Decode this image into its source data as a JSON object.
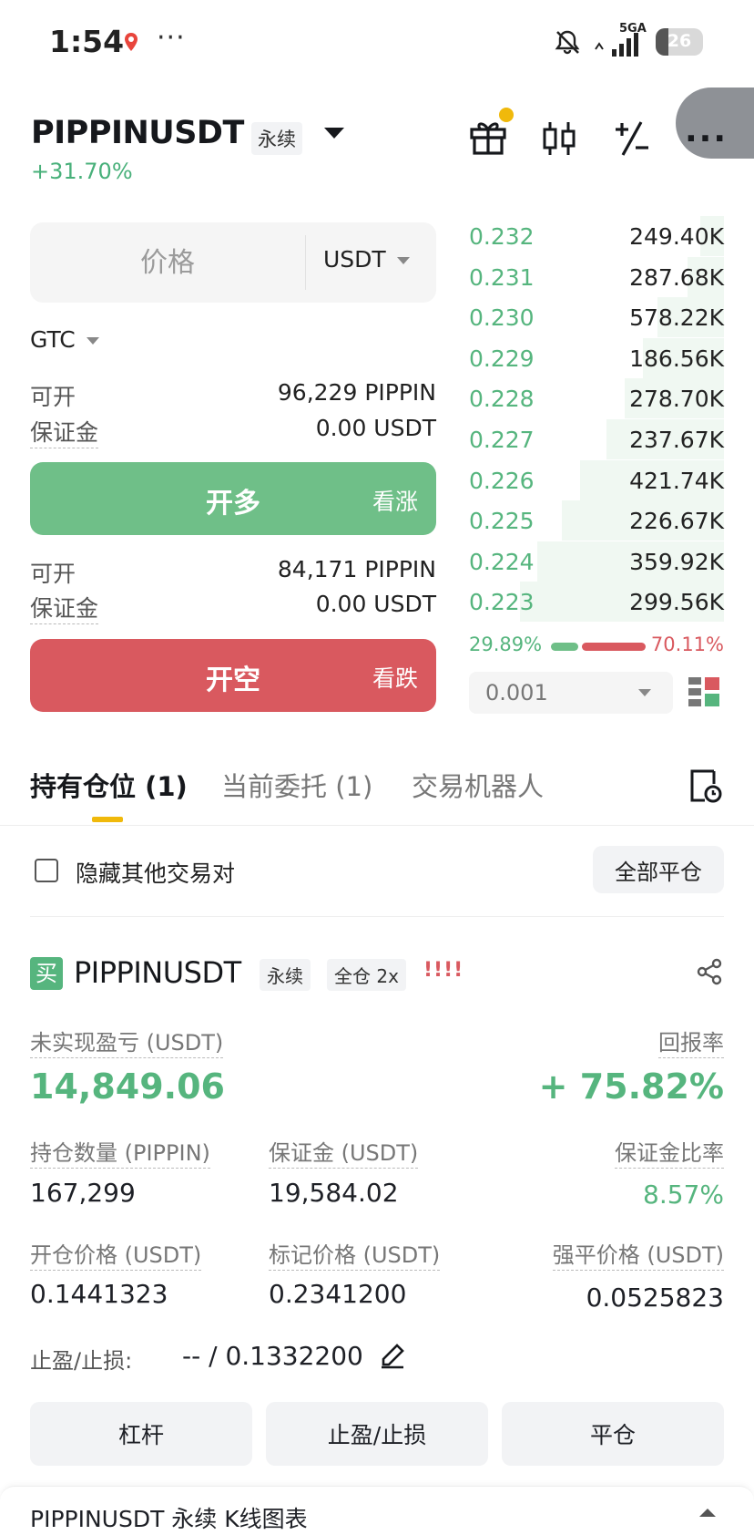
{
  "status_bar": {
    "time": "1:54",
    "network": "5GA",
    "battery": "26"
  },
  "header": {
    "symbol": "PIPPINUSDT",
    "contract_type": "永续",
    "change_pct": "+31.70%",
    "icons": [
      "gift-icon",
      "candlestick-icon",
      "plus-minus-icon",
      "more-icon"
    ]
  },
  "order_form": {
    "price_placeholder": "价格",
    "price_unit": "USDT",
    "time_in_force": "GTC",
    "long": {
      "available_label": "可开",
      "available_value": "96,229 PIPPIN",
      "margin_label": "保证金",
      "margin_value": "0.00 USDT",
      "button_label": "开多",
      "button_sub": "看涨"
    },
    "short": {
      "available_label": "可开",
      "available_value": "84,171 PIPPIN",
      "margin_label": "保证金",
      "margin_value": "0.00 USDT",
      "button_label": "开空",
      "button_sub": "看跌"
    }
  },
  "order_book": {
    "bids": [
      {
        "price": "0.232",
        "qty": "249.40K",
        "depth": 0.08
      },
      {
        "price": "0.231",
        "qty": "287.68K",
        "depth": 0.12
      },
      {
        "price": "0.230",
        "qty": "578.22K",
        "depth": 0.22
      },
      {
        "price": "0.229",
        "qty": "186.56K",
        "depth": 0.27
      },
      {
        "price": "0.228",
        "qty": "278.70K",
        "depth": 0.33
      },
      {
        "price": "0.227",
        "qty": "237.67K",
        "depth": 0.39
      },
      {
        "price": "0.226",
        "qty": "421.74K",
        "depth": 0.48
      },
      {
        "price": "0.225",
        "qty": "226.67K",
        "depth": 0.54
      },
      {
        "price": "0.224",
        "qty": "359.92K",
        "depth": 0.62
      },
      {
        "price": "0.223",
        "qty": "299.56K",
        "depth": 0.68
      }
    ],
    "buy_ratio": "29.89%",
    "sell_ratio": "70.11%",
    "buy_ratio_value": 0.2989,
    "precision": "0.001"
  },
  "tabs": [
    {
      "label": "持有仓位 (1)",
      "active": true
    },
    {
      "label": "当前委托 (1)",
      "active": false
    },
    {
      "label": "交易机器人",
      "active": false
    }
  ],
  "filter": {
    "hide_other_pairs": "隐藏其他交易对",
    "close_all": "全部平仓"
  },
  "position": {
    "side_badge": "买",
    "symbol": "PIPPINUSDT",
    "contract_type": "永续",
    "margin_mode": "全仓 2x",
    "alert": "!!!!",
    "unrealized_pnl_label": "未实现盈亏 (USDT)",
    "unrealized_pnl": "14,849.06",
    "roe_label": "回报率",
    "roe": "+ 75.82%",
    "size_label": "持仓数量 (PIPPIN)",
    "size": "167,299",
    "margin_label": "保证金 (USDT)",
    "margin": "19,584.02",
    "margin_ratio_label": "保证金比率",
    "margin_ratio": "8.57%",
    "entry_label": "开仓价格 (USDT)",
    "entry": "0.1441323",
    "mark_label": "标记价格 (USDT)",
    "mark": "0.2341200",
    "liq_label": "强平价格 (USDT)",
    "liq": "0.0525823",
    "tpsl_label": "止盈/止损:",
    "tpsl_value": "-- / 0.1332200"
  },
  "actions": {
    "leverage": "杠杆",
    "tpsl": "止盈/止损",
    "close": "平仓"
  },
  "kline_bar": {
    "title": "PIPPINUSDT 永续 K线图表"
  },
  "colors": {
    "buy": "#56b57e",
    "sell": "#d9595f",
    "accent": "#f0b90b"
  }
}
